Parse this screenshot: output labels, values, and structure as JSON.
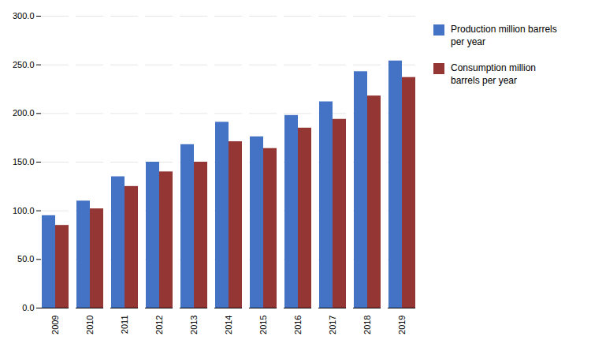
{
  "chart_data": {
    "type": "bar",
    "categories": [
      "2009",
      "2010",
      "2011",
      "2012",
      "2013",
      "2014",
      "2015",
      "2016",
      "2017",
      "2018",
      "2019"
    ],
    "series": [
      {
        "name": "Production million barrels\nper year",
        "color": "#4472C4",
        "values": [
          95,
          110,
          135,
          150,
          168,
          191,
          176,
          198,
          212,
          243,
          254
        ]
      },
      {
        "name": "Consumption million\nbarrels per year",
        "color": "#943634",
        "values": [
          85,
          102,
          125,
          140,
          150,
          171,
          164,
          185,
          194,
          218,
          237
        ]
      }
    ],
    "ylim": [
      0,
      300
    ],
    "yticks": [
      {
        "value": 0,
        "label": "0.0"
      },
      {
        "value": 50,
        "label": "50.0"
      },
      {
        "value": 100,
        "label": "100.0"
      },
      {
        "value": 150,
        "label": "150.0"
      },
      {
        "value": 200,
        "label": "200.0"
      },
      {
        "value": 250,
        "label": "250.0"
      },
      {
        "value": 300,
        "label": "300.0"
      }
    ],
    "grid": true,
    "legend": "right"
  }
}
